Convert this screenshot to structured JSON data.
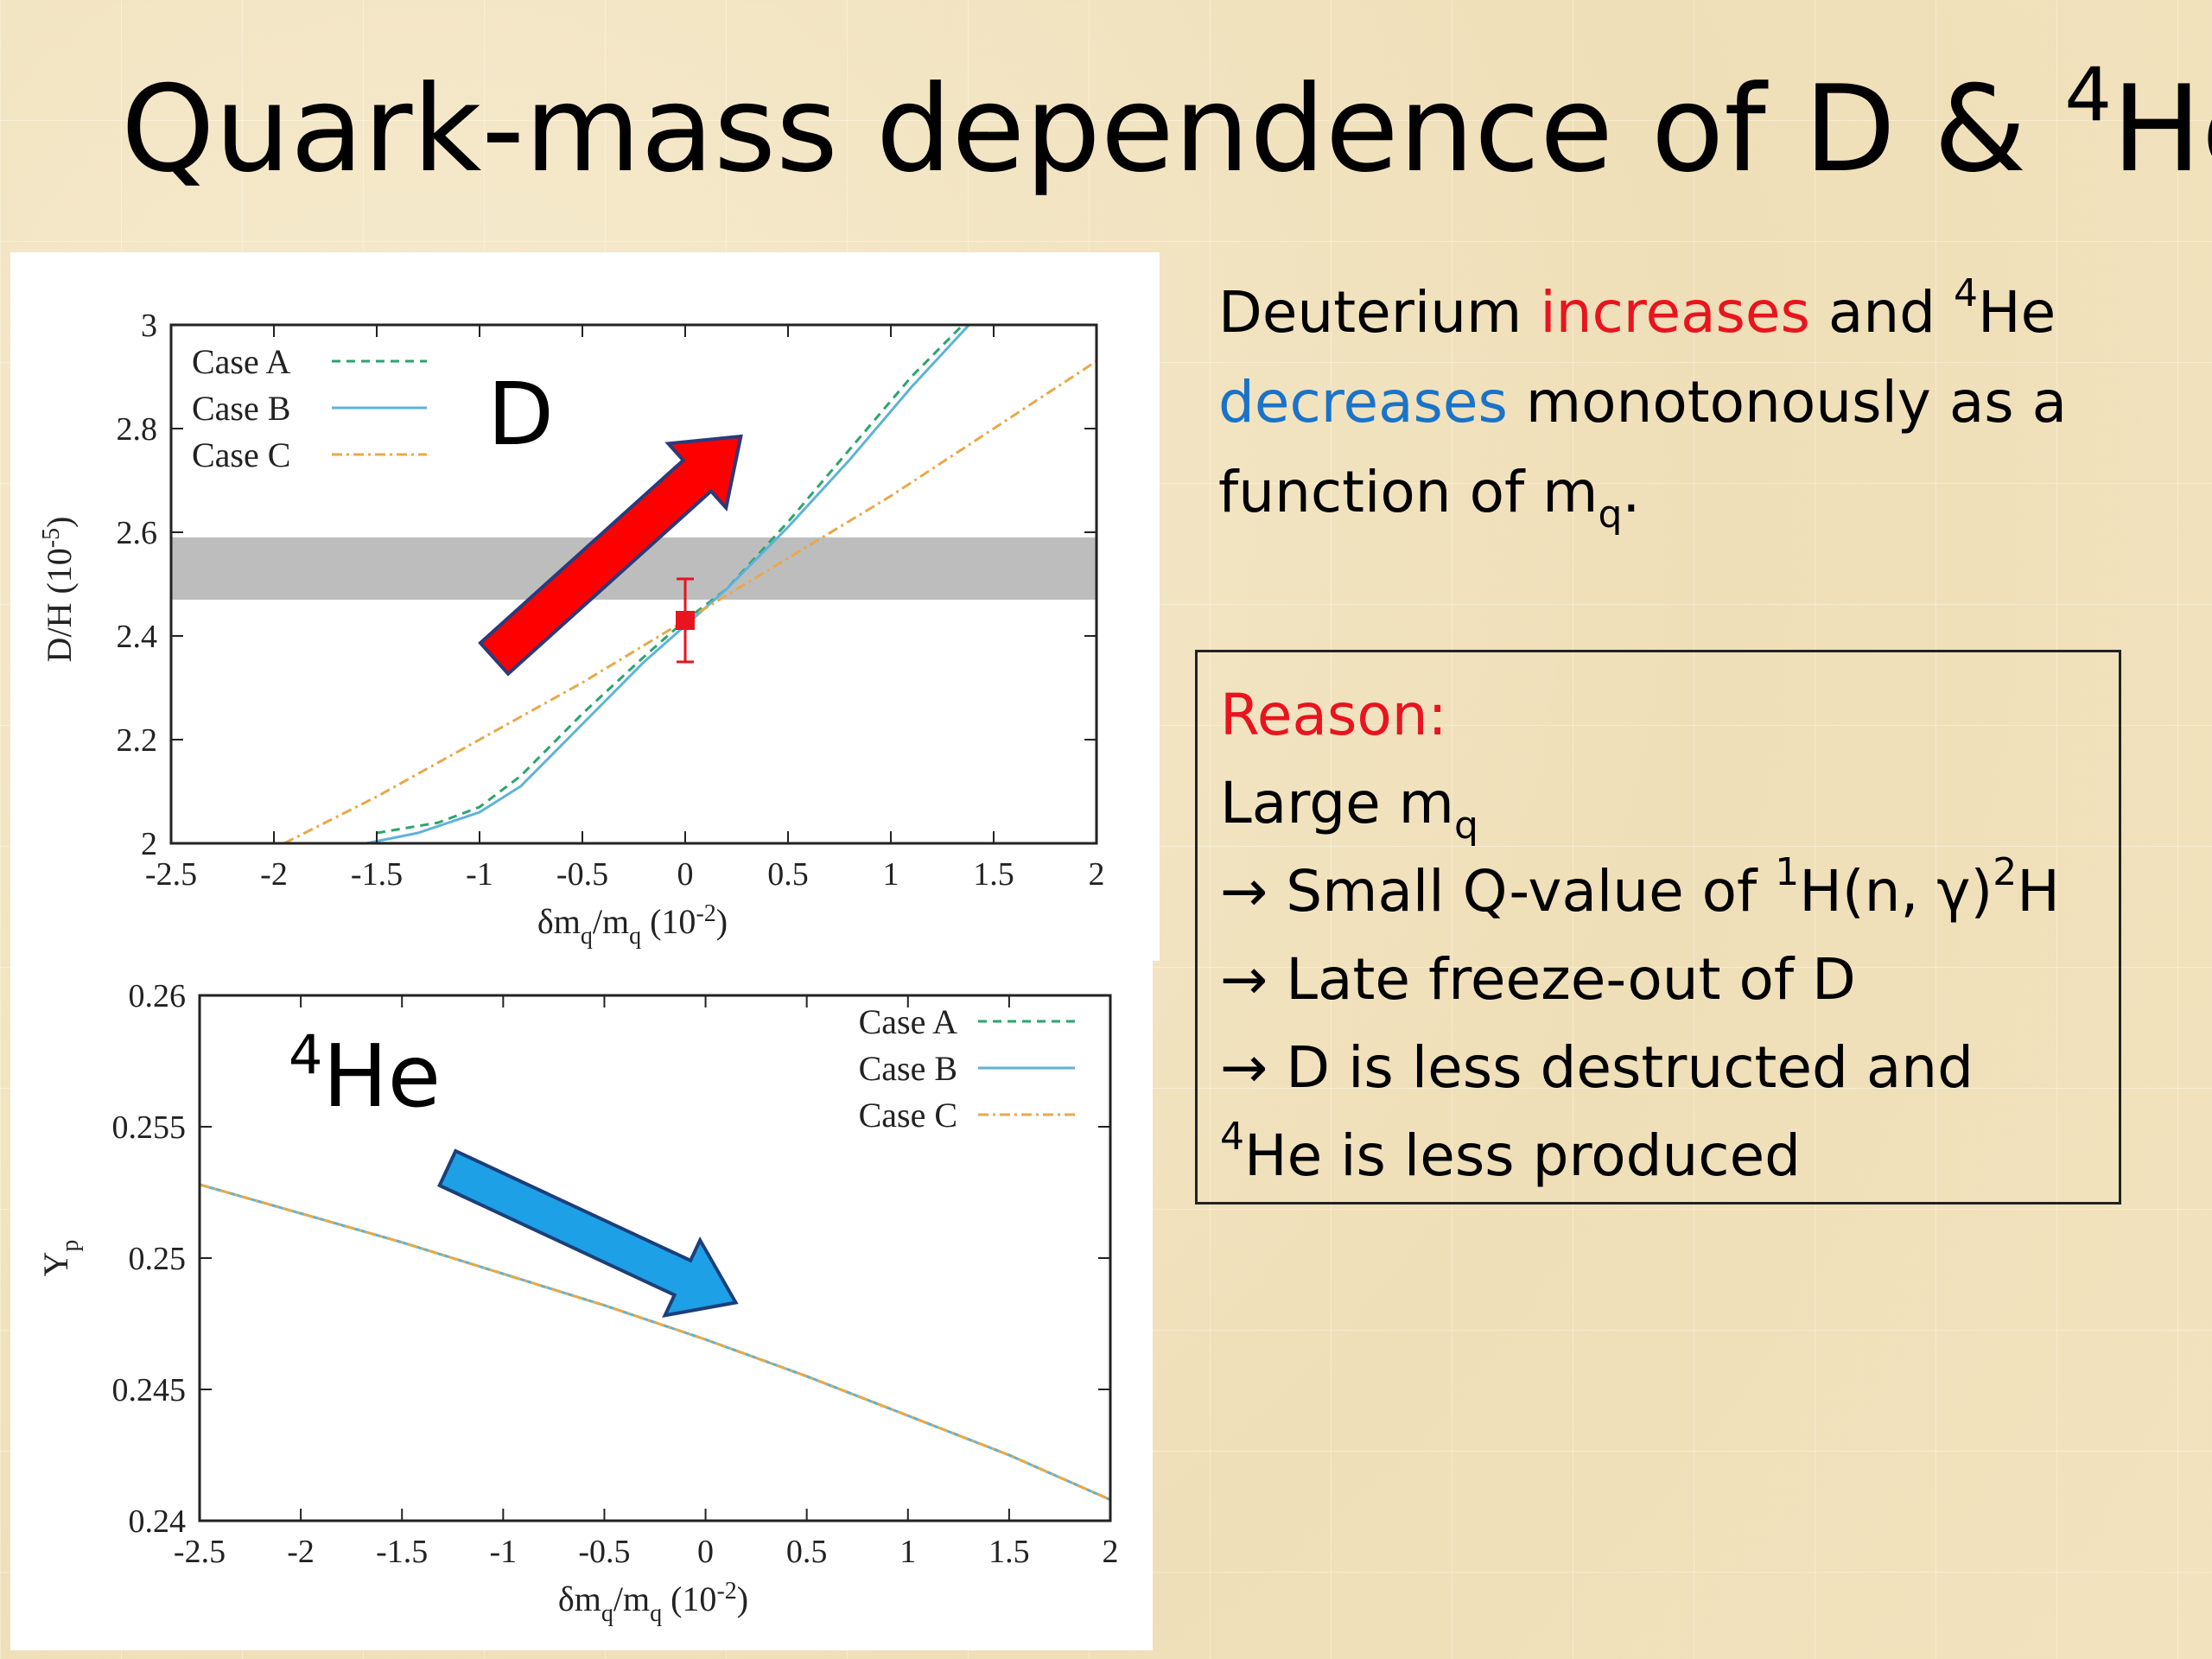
{
  "slide": {
    "title_main": "Quark-mass dependence of D & ",
    "title_sup": "4",
    "title_end": "He"
  },
  "description": {
    "part1": "Deuterium ",
    "increases": "increases",
    "part2": " and ",
    "sup4": "4",
    "part3": "He ",
    "decreases": "decreases",
    "part4": " monotonously as a function of m",
    "sub_q": "q",
    "part5": "."
  },
  "reason": {
    "heading": "Reason:",
    "line1_pre": "Large m",
    "line1_sub": "q",
    "line2_pre": "→ Small Q-value of ",
    "line2_sup1": "1",
    "line2_mid": "H(n, γ)",
    "line2_sup2": "2",
    "line2_end": "H",
    "line3": "→ Late freeze-out of D",
    "line4": "→ D is less destructed and",
    "line5_sup": "4",
    "line5": "He is less produced"
  },
  "colors": {
    "red_text": "#e8141e",
    "blue_text": "#1a73c8",
    "case_a": "#2aa56e",
    "case_b": "#5fb2d9",
    "case_c": "#e8a94a",
    "arrow_red": "#ff0000",
    "arrow_blue": "#1ea0e6",
    "band": "#bdbdbd"
  },
  "chart_data": [
    {
      "type": "line",
      "panel_label_main": "D",
      "ylabel": "D/H (10",
      "ylabel_sup": "-5",
      "ylabel_end": ")",
      "xlabel": "δm",
      "xlabel_sub": "q",
      "xlabel_mid": "/m",
      "xlabel_sub2": "q",
      "xlabel_end": " (10",
      "xlabel_sup": "-2",
      "xlabel_close": ")",
      "xlim": [
        -2.5,
        2
      ],
      "ylim": [
        2,
        3
      ],
      "x_ticks": [
        "-2.5",
        "-2",
        "-1.5",
        "-1",
        "-0.5",
        "0",
        "0.5",
        "1",
        "1.5",
        "2"
      ],
      "y_ticks": [
        "2",
        "2.2",
        "2.4",
        "2.6",
        "2.8",
        "3"
      ],
      "legend_position": "top-left",
      "observation_band": [
        2.47,
        2.59
      ],
      "data_point": {
        "x": 0,
        "y": 2.43,
        "err_low": 2.35,
        "err_high": 2.51
      },
      "trend": "increasing",
      "series": [
        {
          "name": "Case A",
          "style": "dashed",
          "x": [
            -1.5,
            -1.2,
            -1.0,
            -0.8,
            -0.5,
            -0.2,
            0.0,
            0.2,
            0.5,
            0.8,
            1.1,
            1.4
          ],
          "y": [
            2.02,
            2.04,
            2.07,
            2.13,
            2.25,
            2.36,
            2.43,
            2.49,
            2.62,
            2.76,
            2.9,
            3.02
          ]
        },
        {
          "name": "Case B",
          "style": "solid",
          "x": [
            -1.55,
            -1.3,
            -1.0,
            -0.8,
            -0.5,
            -0.2,
            0.0,
            0.2,
            0.5,
            0.8,
            1.1,
            1.38
          ],
          "y": [
            2.0,
            2.02,
            2.06,
            2.11,
            2.23,
            2.35,
            2.42,
            2.49,
            2.61,
            2.74,
            2.88,
            3.0
          ]
        },
        {
          "name": "Case C",
          "style": "dash-dot",
          "x": [
            -1.95,
            -1.5,
            -1.0,
            -0.5,
            0.0,
            0.5,
            1.0,
            1.5,
            2.0
          ],
          "y": [
            2.0,
            2.09,
            2.2,
            2.31,
            2.43,
            2.55,
            2.67,
            2.8,
            2.93
          ]
        }
      ]
    },
    {
      "type": "line",
      "panel_label_sup": "4",
      "panel_label_main": "He",
      "ylabel": "Y",
      "ylabel_sub": "p",
      "xlabel": "δm",
      "xlabel_sub": "q",
      "xlabel_mid": "/m",
      "xlabel_sub2": "q",
      "xlabel_end": " (10",
      "xlabel_sup": "-2",
      "xlabel_close": ")",
      "xlim": [
        -2.5,
        2
      ],
      "ylim": [
        0.24,
        0.26
      ],
      "x_ticks": [
        "-2.5",
        "-2",
        "-1.5",
        "-1",
        "-0.5",
        "0",
        "0.5",
        "1",
        "1.5",
        "2"
      ],
      "y_ticks": [
        "0.24",
        "0.245",
        "0.25",
        "0.255",
        "0.26"
      ],
      "legend_position": "top-right",
      "trend": "decreasing",
      "series": [
        {
          "name": "Case A",
          "style": "dashed",
          "x": [
            -2.5,
            -2.0,
            -1.5,
            -1.0,
            -0.5,
            0.0,
            0.5,
            1.0,
            1.5,
            2.0
          ],
          "y": [
            0.2528,
            0.2517,
            0.2506,
            0.2494,
            0.2482,
            0.2469,
            0.2455,
            0.244,
            0.2425,
            0.2408
          ]
        },
        {
          "name": "Case B",
          "style": "solid",
          "x": [
            -2.5,
            -2.0,
            -1.5,
            -1.0,
            -0.5,
            0.0,
            0.5,
            1.0,
            1.5,
            2.0
          ],
          "y": [
            0.2528,
            0.2517,
            0.2506,
            0.2494,
            0.2482,
            0.2469,
            0.2455,
            0.244,
            0.2425,
            0.2408
          ]
        },
        {
          "name": "Case C",
          "style": "dash-dot",
          "x": [
            -2.5,
            -2.0,
            -1.5,
            -1.0,
            -0.5,
            0.0,
            0.5,
            1.0,
            1.5,
            2.0
          ],
          "y": [
            0.2528,
            0.2517,
            0.2506,
            0.2494,
            0.2482,
            0.2469,
            0.2455,
            0.244,
            0.2425,
            0.2408
          ]
        }
      ]
    }
  ]
}
